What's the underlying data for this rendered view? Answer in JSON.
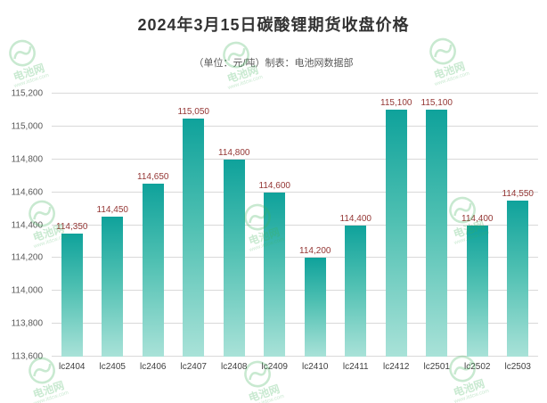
{
  "header": {
    "title": "2024年3月15日碳酸锂期货收盘价格",
    "subtitle": "（单位：元/吨）制表：电池网数据部"
  },
  "watermark": {
    "brand": "电池网",
    "url": "www.itdcw.com"
  },
  "chart_data": {
    "type": "bar",
    "title": "2024年3月15日碳酸锂期货收盘价格",
    "subtitle": "（单位：元/吨）制表：电池网数据部",
    "categories": [
      "lc2404",
      "lc2405",
      "lc2406",
      "lc2407",
      "lc2408",
      "lc2409",
      "lc2410",
      "lc2411",
      "lc2412",
      "lc2501",
      "lc2502",
      "lc2503"
    ],
    "values": [
      114350,
      114450,
      114650,
      115050,
      114800,
      114600,
      114200,
      114400,
      115100,
      115100,
      114400,
      114550
    ],
    "value_labels": [
      "114,350",
      "114,450",
      "114,650",
      "115,050",
      "114,800",
      "114,600",
      "114,200",
      "114,400",
      "115,100",
      "115,100",
      "114,400",
      "114,550"
    ],
    "ylim": [
      113600,
      115200
    ],
    "ytick_step": 200,
    "ytick_labels": [
      "113,600",
      "113,800",
      "114,000",
      "114,200",
      "114,400",
      "114,600",
      "114,800",
      "115,000",
      "115,200"
    ],
    "grid": true,
    "legend": "none",
    "bar_color_top": "#0fa29b",
    "bar_color_bottom": "#a9e2d8",
    "value_label_color": "#943634"
  }
}
